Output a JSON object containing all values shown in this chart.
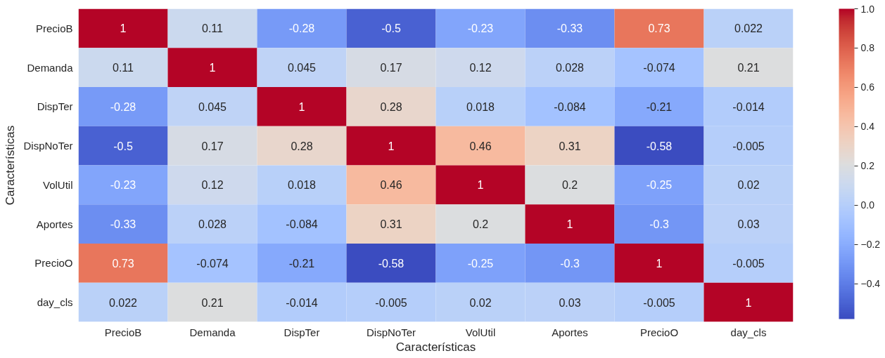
{
  "chart_data": {
    "type": "heatmap",
    "xlabel": "Características",
    "ylabel": "Características",
    "categories": [
      "PrecioB",
      "Demanda",
      "DispTer",
      "DispNoTer",
      "VolUtil",
      "Aportes",
      "PrecioO",
      "day_cls"
    ],
    "y_categories": [
      "PrecioB",
      "Demanda",
      "DispTer",
      "DispNoTer",
      "VolUtil",
      "Aportes",
      "PrecioO",
      "day_cls"
    ],
    "cells": [
      [
        1,
        0.11,
        -0.28,
        -0.5,
        -0.23,
        -0.33,
        0.73,
        0.022
      ],
      [
        0.11,
        1,
        0.045,
        0.17,
        0.12,
        0.028,
        -0.074,
        0.21
      ],
      [
        -0.28,
        0.045,
        1,
        0.28,
        0.018,
        -0.084,
        -0.21,
        -0.014
      ],
      [
        -0.5,
        0.17,
        0.28,
        1,
        0.46,
        0.31,
        -0.58,
        -0.005
      ],
      [
        -0.23,
        0.12,
        0.018,
        0.46,
        1,
        0.2,
        -0.25,
        0.02
      ],
      [
        -0.33,
        0.028,
        -0.084,
        0.31,
        0.2,
        1,
        -0.3,
        0.03
      ],
      [
        0.73,
        -0.074,
        -0.21,
        -0.58,
        -0.25,
        -0.3,
        1,
        -0.005
      ],
      [
        0.022,
        0.21,
        -0.014,
        -0.005,
        0.02,
        0.03,
        -0.005,
        1
      ]
    ],
    "clim": [
      -0.58,
      1
    ],
    "cticks": [
      {
        "value": -0.4,
        "label": "−0.4"
      },
      {
        "value": -0.2,
        "label": "−0.2"
      },
      {
        "value": 0,
        "label": "0.0"
      },
      {
        "value": 0.2,
        "label": "0.2"
      },
      {
        "value": 0.4,
        "label": "0.4"
      },
      {
        "value": 0.6,
        "label": "0.6"
      },
      {
        "value": 0.8,
        "label": "0.8"
      },
      {
        "value": 1,
        "label": "1.0"
      }
    ],
    "data_labels": true
  }
}
